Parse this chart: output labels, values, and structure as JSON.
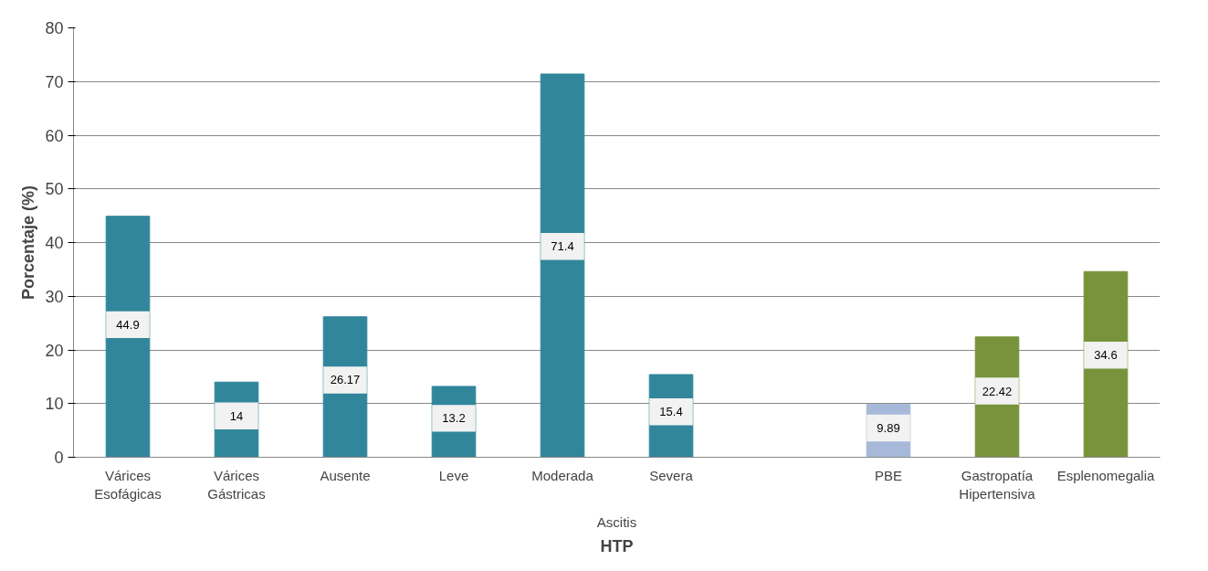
{
  "chart_data": {
    "type": "bar",
    "xlabel": "HTP",
    "ylabel": "Porcentaje (%)",
    "categories": [
      "Várices Esofágicas",
      "Várices Gástricas",
      "Ausente",
      "Leve",
      "Moderada",
      "Severa",
      null,
      "PBE",
      "Gastropatía Hipertensiva",
      "Esplenomegalia"
    ],
    "values": [
      44.9,
      14,
      26.17,
      13.2,
      71.4,
      15.4,
      null,
      9.89,
      22.42,
      34.6
    ],
    "colors": [
      "#31869b",
      "#31869b",
      "#31869b",
      "#31869b",
      "#31869b",
      "#31869b",
      "#31869b",
      "#a7b9d9",
      "#77933c",
      "#77933c"
    ],
    "annotations": [
      "Ascitis"
    ],
    "ylim": [
      0,
      80
    ],
    "yticks": [
      0,
      10,
      20,
      30,
      40,
      50,
      60,
      70,
      80
    ],
    "grid": "y",
    "data_labels": true
  }
}
